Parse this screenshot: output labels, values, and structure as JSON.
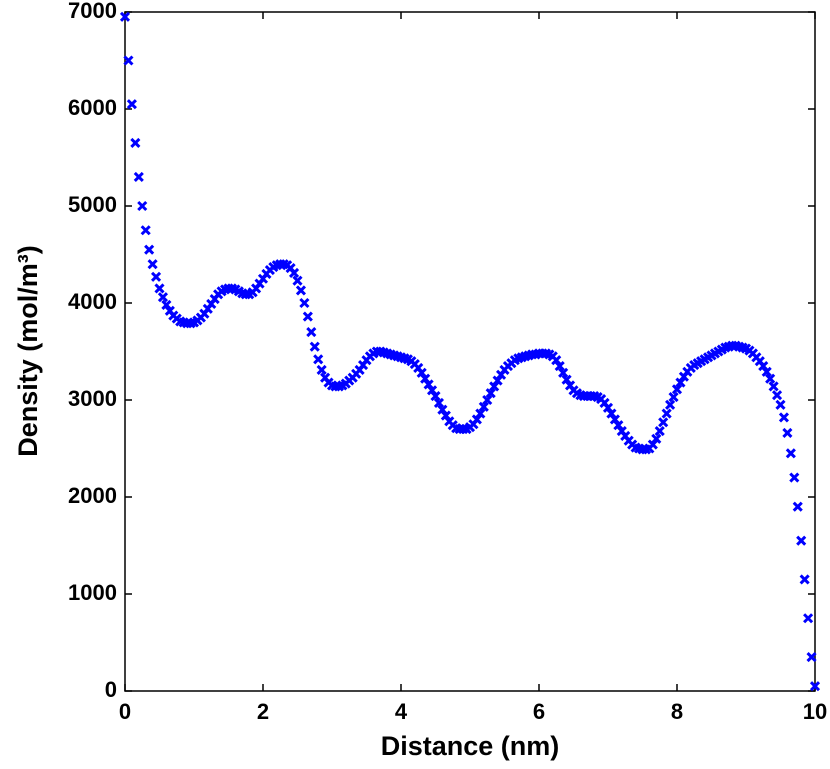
{
  "chart_data": {
    "type": "scatter",
    "xlabel": "Distance (nm)",
    "ylabel": "Density (mol/m³)",
    "marker": "x",
    "color": "#0000ff",
    "xlim": [
      0,
      10
    ],
    "ylim": [
      0,
      7000
    ],
    "xticks": [
      0,
      2,
      4,
      6,
      8,
      10
    ],
    "yticks": [
      0,
      1000,
      2000,
      3000,
      4000,
      5000,
      6000,
      7000
    ],
    "x": [
      0,
      0.05,
      0.1,
      0.15,
      0.2,
      0.25,
      0.3,
      0.35,
      0.4,
      0.45,
      0.5,
      0.55,
      0.6,
      0.65,
      0.7,
      0.75,
      0.8,
      0.85,
      0.9,
      0.95,
      1,
      1.05,
      1.1,
      1.15,
      1.2,
      1.25,
      1.3,
      1.35,
      1.4,
      1.45,
      1.5,
      1.55,
      1.6,
      1.65,
      1.7,
      1.75,
      1.8,
      1.85,
      1.9,
      1.95,
      2,
      2.05,
      2.1,
      2.15,
      2.2,
      2.25,
      2.3,
      2.35,
      2.4,
      2.45,
      2.5,
      2.55,
      2.6,
      2.65,
      2.7,
      2.75,
      2.8,
      2.85,
      2.9,
      2.95,
      3,
      3.05,
      3.1,
      3.15,
      3.2,
      3.25,
      3.3,
      3.35,
      3.4,
      3.45,
      3.5,
      3.55,
      3.6,
      3.65,
      3.7,
      3.75,
      3.8,
      3.85,
      3.9,
      3.95,
      4,
      4.05,
      4.1,
      4.15,
      4.2,
      4.25,
      4.3,
      4.35,
      4.4,
      4.45,
      4.5,
      4.55,
      4.6,
      4.65,
      4.7,
      4.75,
      4.8,
      4.85,
      4.9,
      4.95,
      5,
      5.05,
      5.1,
      5.15,
      5.2,
      5.25,
      5.3,
      5.35,
      5.4,
      5.45,
      5.5,
      5.55,
      5.6,
      5.65,
      5.7,
      5.75,
      5.8,
      5.85,
      5.9,
      5.95,
      6,
      6.05,
      6.1,
      6.15,
      6.2,
      6.25,
      6.3,
      6.35,
      6.4,
      6.45,
      6.5,
      6.55,
      6.6,
      6.65,
      6.7,
      6.75,
      6.8,
      6.85,
      6.9,
      6.95,
      7,
      7.05,
      7.1,
      7.15,
      7.2,
      7.25,
      7.3,
      7.35,
      7.4,
      7.45,
      7.5,
      7.55,
      7.6,
      7.65,
      7.7,
      7.75,
      7.8,
      7.85,
      7.9,
      7.95,
      8,
      8.05,
      8.1,
      8.15,
      8.2,
      8.25,
      8.3,
      8.35,
      8.4,
      8.45,
      8.5,
      8.55,
      8.6,
      8.65,
      8.7,
      8.75,
      8.8,
      8.85,
      8.9,
      8.95,
      9,
      9.05,
      9.1,
      9.15,
      9.2,
      9.25,
      9.3,
      9.35,
      9.4,
      9.45,
      9.5,
      9.55,
      9.6,
      9.65,
      9.7,
      9.75,
      9.8,
      9.85,
      9.9,
      9.95,
      10
    ],
    "values": [
      6950,
      6500,
      6050,
      5650,
      5300,
      5000,
      4750,
      4550,
      4400,
      4270,
      4150,
      4060,
      3980,
      3920,
      3870,
      3840,
      3810,
      3800,
      3790,
      3790,
      3800,
      3820,
      3850,
      3890,
      3940,
      3990,
      4040,
      4090,
      4120,
      4140,
      4150,
      4150,
      4140,
      4120,
      4100,
      4090,
      4090,
      4110,
      4150,
      4200,
      4250,
      4300,
      4340,
      4370,
      4390,
      4400,
      4400,
      4390,
      4360,
      4310,
      4230,
      4130,
      4000,
      3860,
      3700,
      3550,
      3420,
      3310,
      3230,
      3180,
      3150,
      3140,
      3140,
      3150,
      3170,
      3200,
      3230,
      3270,
      3310,
      3360,
      3410,
      3450,
      3480,
      3500,
      3500,
      3490,
      3480,
      3470,
      3460,
      3450,
      3440,
      3430,
      3420,
      3400,
      3370,
      3330,
      3280,
      3220,
      3160,
      3100,
      3040,
      2970,
      2900,
      2840,
      2780,
      2740,
      2710,
      2700,
      2700,
      2700,
      2720,
      2750,
      2800,
      2860,
      2930,
      3000,
      3070,
      3140,
      3200,
      3260,
      3310,
      3350,
      3380,
      3410,
      3430,
      3440,
      3450,
      3460,
      3470,
      3470,
      3480,
      3480,
      3480,
      3470,
      3450,
      3410,
      3350,
      3280,
      3210,
      3150,
      3100,
      3070,
      3050,
      3040,
      3040,
      3040,
      3040,
      3030,
      3010,
      2970,
      2920,
      2860,
      2800,
      2740,
      2680,
      2630,
      2580,
      2540,
      2510,
      2500,
      2490,
      2490,
      2500,
      2540,
      2600,
      2680,
      2770,
      2860,
      2950,
      3030,
      3110,
      3180,
      3240,
      3290,
      3330,
      3360,
      3380,
      3400,
      3420,
      3440,
      3460,
      3480,
      3500,
      3520,
      3540,
      3550,
      3560,
      3560,
      3550,
      3540,
      3530,
      3510,
      3480,
      3440,
      3400,
      3350,
      3290,
      3220,
      3140,
      3050,
      2950,
      2820,
      2660,
      2450,
      2200,
      1900,
      1550,
      1150,
      750,
      350,
      50
    ]
  }
}
